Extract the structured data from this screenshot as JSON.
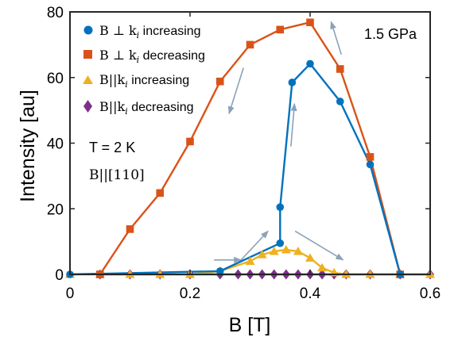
{
  "chart_data": {
    "type": "line",
    "xlabel": "B [T]",
    "ylabel": "Intensity [au]",
    "xlim": [
      0,
      0.6
    ],
    "ylim": [
      0,
      80
    ],
    "xticks": [
      0,
      0.2,
      0.4,
      0.6
    ],
    "xtick_labels": [
      "0",
      "0.2",
      "0.4",
      "0.6"
    ],
    "yticks": [
      0,
      20,
      40,
      60,
      80
    ],
    "ytick_labels": [
      "0",
      "20",
      "40",
      "60",
      "80"
    ],
    "grid": false,
    "legend_position": "top-left",
    "annotations": {
      "pressure": "1.5 GPa",
      "temperature": "T = 2 K",
      "field_direction": "B||[110]"
    },
    "series": [
      {
        "name": "B ⊥ k_i increasing",
        "color": "#0072BD",
        "marker": "circle",
        "x": [
          0,
          0.25,
          0.35,
          0.35,
          0.37,
          0.4,
          0.45,
          0.5,
          0.55
        ],
        "y": [
          0,
          1,
          9.5,
          20.5,
          58.5,
          64.2,
          52.7,
          33.5,
          0
        ]
      },
      {
        "name": "B ⊥ k_i decreasing",
        "color": "#D95319",
        "marker": "square",
        "x": [
          0.05,
          0.1,
          0.15,
          0.2,
          0.25,
          0.3,
          0.35,
          0.4,
          0.45,
          0.5,
          0.55
        ],
        "y": [
          0,
          13.8,
          24.8,
          40.5,
          58.8,
          70.0,
          74.6,
          76.8,
          62.6,
          35.8,
          0
        ]
      },
      {
        "name": "B||k_i increasing",
        "color": "#EDB120",
        "marker": "triangle",
        "x": [
          0,
          0.05,
          0.1,
          0.15,
          0.2,
          0.25,
          0.3,
          0.32,
          0.34,
          0.36,
          0.38,
          0.4,
          0.42,
          0.44,
          0.46,
          0.5,
          0.55,
          0.6
        ],
        "y": [
          0,
          0,
          0,
          0,
          0,
          1,
          4,
          6,
          7,
          7.5,
          7,
          5,
          2,
          0.5,
          0,
          0,
          0,
          0
        ]
      },
      {
        "name": "B||k_i decreasing",
        "color": "#7E2F8E",
        "marker": "diamond",
        "x": [
          0.05,
          0.1,
          0.15,
          0.2,
          0.25,
          0.28,
          0.3,
          0.32,
          0.34,
          0.36,
          0.38,
          0.4,
          0.42,
          0.44,
          0.46,
          0.5,
          0.55,
          0.6
        ],
        "y": [
          0,
          0,
          0,
          0,
          0,
          0,
          0,
          0,
          0,
          0,
          0,
          0,
          0,
          0,
          0,
          0,
          0,
          0
        ]
      }
    ],
    "arrow_color": "#8BA2B8",
    "arrows": [
      {
        "from": [
          0.452,
          67
        ],
        "to": [
          0.435,
          77
        ]
      },
      {
        "from": [
          0.289,
          63
        ],
        "to": [
          0.265,
          49
        ]
      },
      {
        "from": [
          0.368,
          39
        ],
        "to": [
          0.374,
          52
        ]
      },
      {
        "from": [
          0.24,
          4.4
        ],
        "to": [
          0.285,
          4.4
        ]
      },
      {
        "from": [
          0.285,
          4.4
        ],
        "to": [
          0.33,
          13.2
        ]
      },
      {
        "from": [
          0.375,
          13.2
        ],
        "to": [
          0.455,
          4.4
        ]
      }
    ]
  }
}
